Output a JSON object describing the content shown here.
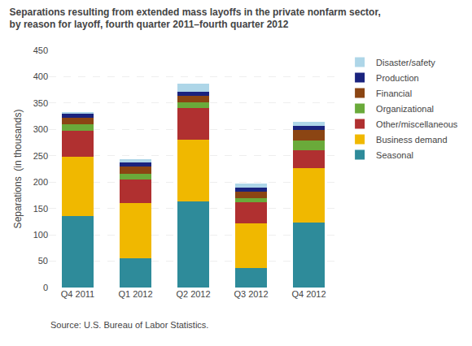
{
  "chart_data": {
    "type": "bar",
    "stacked": true,
    "title": "Separations resulting from extended mass layoffs in the private nonfarm sector,",
    "subtitle": "by reason for layoff, fourth quarter 2011–fourth quarter 2012",
    "annotations": [
      "Source: U.S. Bureau of Labor Statistics."
    ],
    "ylabel": "Separations  (in thousands)",
    "categories": [
      "Q4 2011",
      "Q1 2012",
      "Q2 2012",
      "Q3 2012",
      "Q4 2012"
    ],
    "series": [
      {
        "name": "Seasonal",
        "color": "#2e8b9a",
        "values": [
          135,
          55,
          163,
          37,
          123
        ]
      },
      {
        "name": "Business demand",
        "color": "#f0b800",
        "values": [
          113,
          105,
          117,
          85,
          103
        ]
      },
      {
        "name": "Other/miscellaneous",
        "color": "#b03030",
        "values": [
          50,
          45,
          60,
          40,
          35
        ]
      },
      {
        "name": "Organizational",
        "color": "#6aaa3a",
        "values": [
          12,
          10,
          12,
          8,
          18
        ]
      },
      {
        "name": "Financial",
        "color": "#8b4513",
        "values": [
          12,
          15,
          12,
          12,
          20
        ]
      },
      {
        "name": "Production",
        "color": "#1a237e",
        "values": [
          8,
          8,
          8,
          8,
          8
        ]
      },
      {
        "name": "Disaster/safety",
        "color": "#aed6e8",
        "values": [
          3,
          5,
          15,
          8,
          8
        ]
      }
    ],
    "ylim": [
      0,
      450
    ],
    "yticks": [
      0,
      50,
      100,
      150,
      200,
      250,
      300,
      350,
      400,
      450
    ],
    "grid": true,
    "legend": "right"
  }
}
